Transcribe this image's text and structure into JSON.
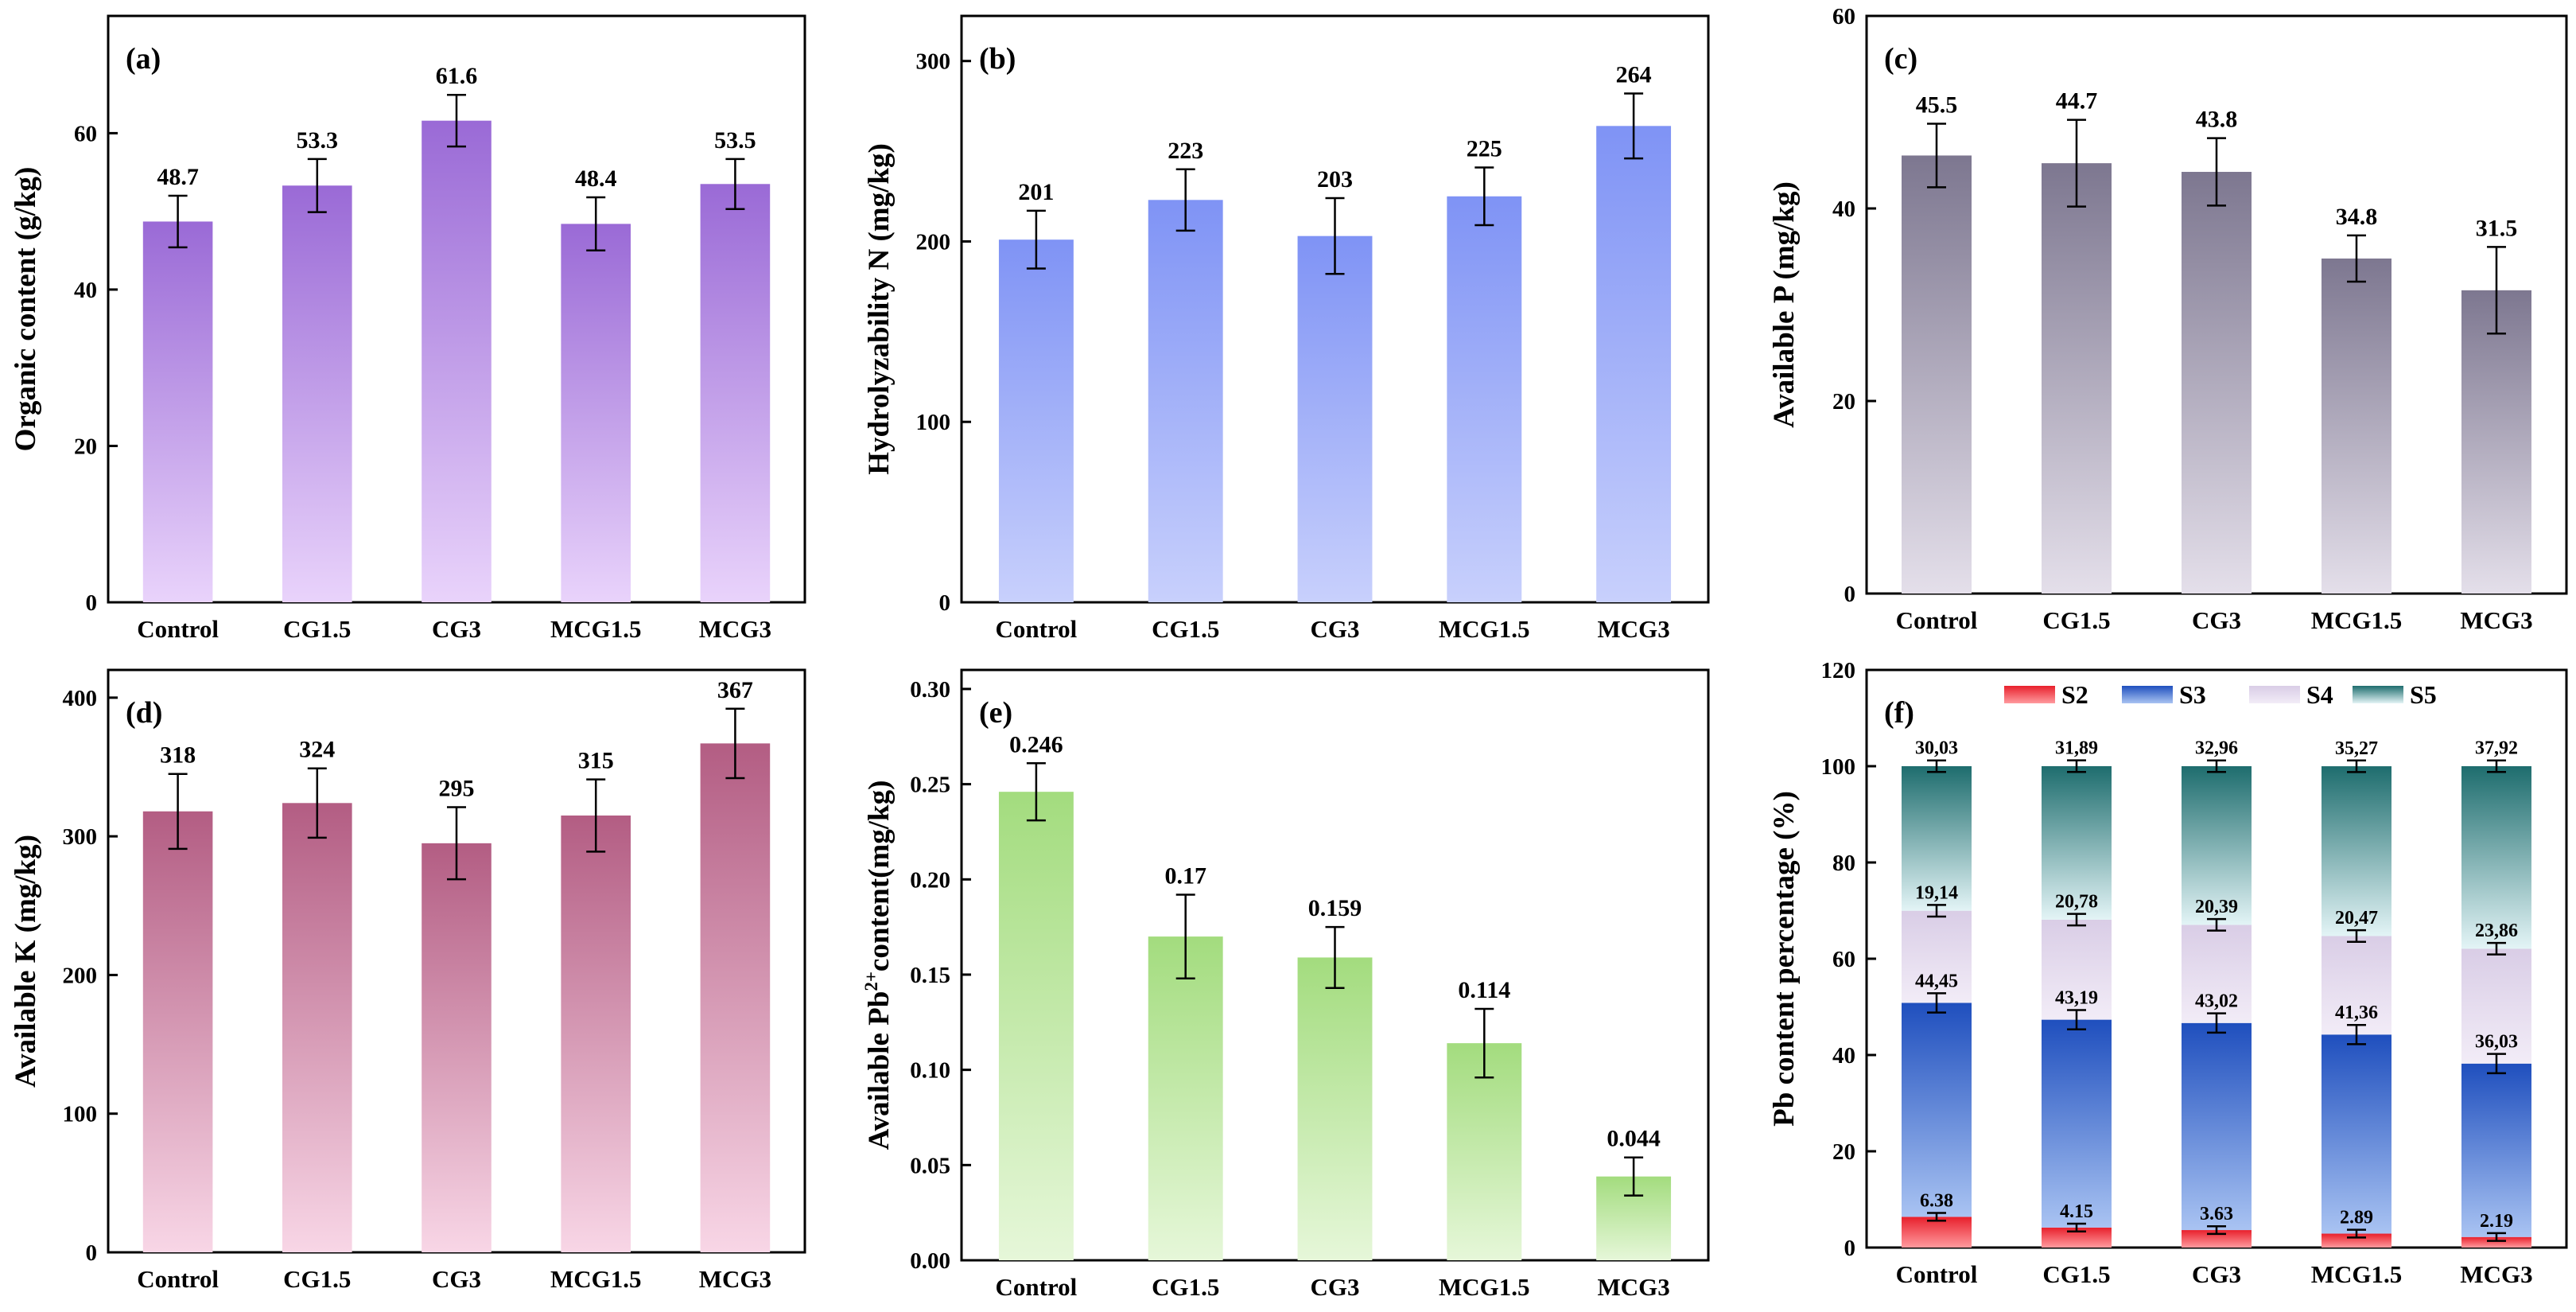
{
  "chart_data": [
    {
      "type": "bar",
      "panel_label": "(a)",
      "categories": [
        "Control",
        "CG1.5",
        "CG3",
        "MCG1.5",
        "MCG3"
      ],
      "values": [
        48.7,
        53.3,
        61.6,
        48.4,
        53.5
      ],
      "value_labels": [
        "48.7",
        "53.3",
        "61.6",
        "48.4",
        "53.5"
      ],
      "errors": [
        3.3,
        3.4,
        3.3,
        3.4,
        3.2
      ],
      "ylabel": "Organic content (g/kg)",
      "ylim": [
        0,
        75
      ],
      "yticks": [
        0,
        20,
        40,
        60
      ],
      "ytick_labels": [
        "0",
        "20",
        "40",
        "60"
      ],
      "colors": {
        "top": "#9a6ad6",
        "bottom": "#e9d3fb"
      }
    },
    {
      "type": "bar",
      "panel_label": "(b)",
      "categories": [
        "Control",
        "CG1.5",
        "CG3",
        "MCG1.5",
        "MCG3"
      ],
      "values": [
        201,
        223,
        203,
        225,
        264
      ],
      "value_labels": [
        "201",
        "223",
        "203",
        "225",
        "264"
      ],
      "errors": [
        16,
        17,
        21,
        16,
        18
      ],
      "ylabel": "Hydrolyzability N (mg/kg)",
      "ylim": [
        0,
        325
      ],
      "yticks": [
        0,
        100,
        200,
        300
      ],
      "ytick_labels": [
        "0",
        "100",
        "200",
        "300"
      ],
      "colors": {
        "top": "#7f93f5",
        "bottom": "#c8d0fc"
      }
    },
    {
      "type": "bar",
      "panel_label": "(c)",
      "categories": [
        "Control",
        "CG1.5",
        "CG3",
        "MCG1.5",
        "MCG3"
      ],
      "values": [
        45.5,
        44.7,
        43.8,
        34.8,
        31.5
      ],
      "value_labels": [
        "45.5",
        "44.7",
        "43.8",
        "34.8",
        "31.5"
      ],
      "errors": [
        3.3,
        4.5,
        3.5,
        2.4,
        4.5
      ],
      "ylabel": "Available P (mg/kg)",
      "ylim": [
        0,
        60
      ],
      "yticks": [
        0,
        20,
        40,
        60
      ],
      "ytick_labels": [
        "0",
        "20",
        "40",
        "60"
      ],
      "colors": {
        "top": "#7d7790",
        "bottom": "#e4dfea"
      }
    },
    {
      "type": "bar",
      "panel_label": "(d)",
      "categories": [
        "Control",
        "CG1.5",
        "CG3",
        "MCG1.5",
        "MCG3"
      ],
      "values": [
        318,
        324,
        295,
        315,
        367
      ],
      "value_labels": [
        "318",
        "324",
        "295",
        "315",
        "367"
      ],
      "errors": [
        27,
        25,
        26,
        26,
        25
      ],
      "ylabel": "Available K (mg/kg)",
      "ylim": [
        0,
        420
      ],
      "yticks": [
        0,
        100,
        200,
        300,
        400
      ],
      "ytick_labels": [
        "0",
        "100",
        "200",
        "300",
        "400"
      ],
      "colors": {
        "top": "#b35d83",
        "bottom": "#f8d6e6"
      }
    },
    {
      "type": "bar",
      "panel_label": "(e)",
      "categories": [
        "Control",
        "CG1.5",
        "CG3",
        "MCG1.5",
        "MCG3"
      ],
      "values": [
        0.246,
        0.17,
        0.159,
        0.114,
        0.044
      ],
      "value_labels": [
        "0.246",
        "0.17",
        "0.159",
        "0.114",
        "0.044"
      ],
      "errors": [
        0.015,
        0.022,
        0.016,
        0.018,
        0.01
      ],
      "ylabel_prefix": "Available Pb",
      "ylabel_sup": "2+",
      "ylabel_suffix": "content(mg/kg)",
      "ylim": [
        0,
        0.31
      ],
      "yticks": [
        0,
        0.05,
        0.1,
        0.15,
        0.2,
        0.25,
        0.3
      ],
      "ytick_labels": [
        "0.00",
        "0.05",
        "0.10",
        "0.15",
        "0.20",
        "0.25",
        "0.30"
      ],
      "colors": {
        "top": "#a3dc7e",
        "bottom": "#e6f7d9"
      }
    },
    {
      "type": "stacked_bar",
      "panel_label": "(f)",
      "categories": [
        "Control",
        "CG1.5",
        "CG3",
        "MCG1.5",
        "MCG3"
      ],
      "ylabel": "Pb content percentage (%)",
      "ylim": [
        0,
        120
      ],
      "yticks": [
        0,
        20,
        40,
        60,
        80,
        100,
        120
      ],
      "ytick_labels": [
        "0",
        "20",
        "40",
        "60",
        "80",
        "100",
        "120"
      ],
      "legend_position": "top",
      "series": [
        {
          "name": "S2",
          "values": [
            6.38,
            4.15,
            3.63,
            2.89,
            2.19
          ],
          "labels": [
            "6.38",
            "4.15",
            "3.63",
            "2.89",
            "2.19"
          ],
          "error": 0.8,
          "color_top": "#e8202c",
          "color_bottom": "#ff9a9e"
        },
        {
          "name": "S3",
          "values": [
            44.45,
            43.19,
            43.02,
            41.36,
            36.03
          ],
          "labels": [
            "44,45",
            "43,19",
            "43,02",
            "41,36",
            "36,03"
          ],
          "error": 2.0,
          "color_top": "#1f4fbe",
          "color_bottom": "#a9c3f2"
        },
        {
          "name": "S4",
          "values": [
            19.14,
            20.78,
            20.39,
            20.47,
            23.86
          ],
          "labels": [
            "19,14",
            "20,78",
            "20,39",
            "20,47",
            "23,86"
          ],
          "error": 1.2,
          "color_top": "#d9cde6",
          "color_bottom": "#f2ecf7"
        },
        {
          "name": "S5",
          "values": [
            30.03,
            31.89,
            32.96,
            35.27,
            37.92
          ],
          "labels": [
            "30,03",
            "31,89",
            "32,96",
            "35,27",
            "37,92"
          ],
          "error": 1.2,
          "color_top": "#1e6d6e",
          "color_bottom": "#e3f4f6"
        }
      ]
    }
  ]
}
